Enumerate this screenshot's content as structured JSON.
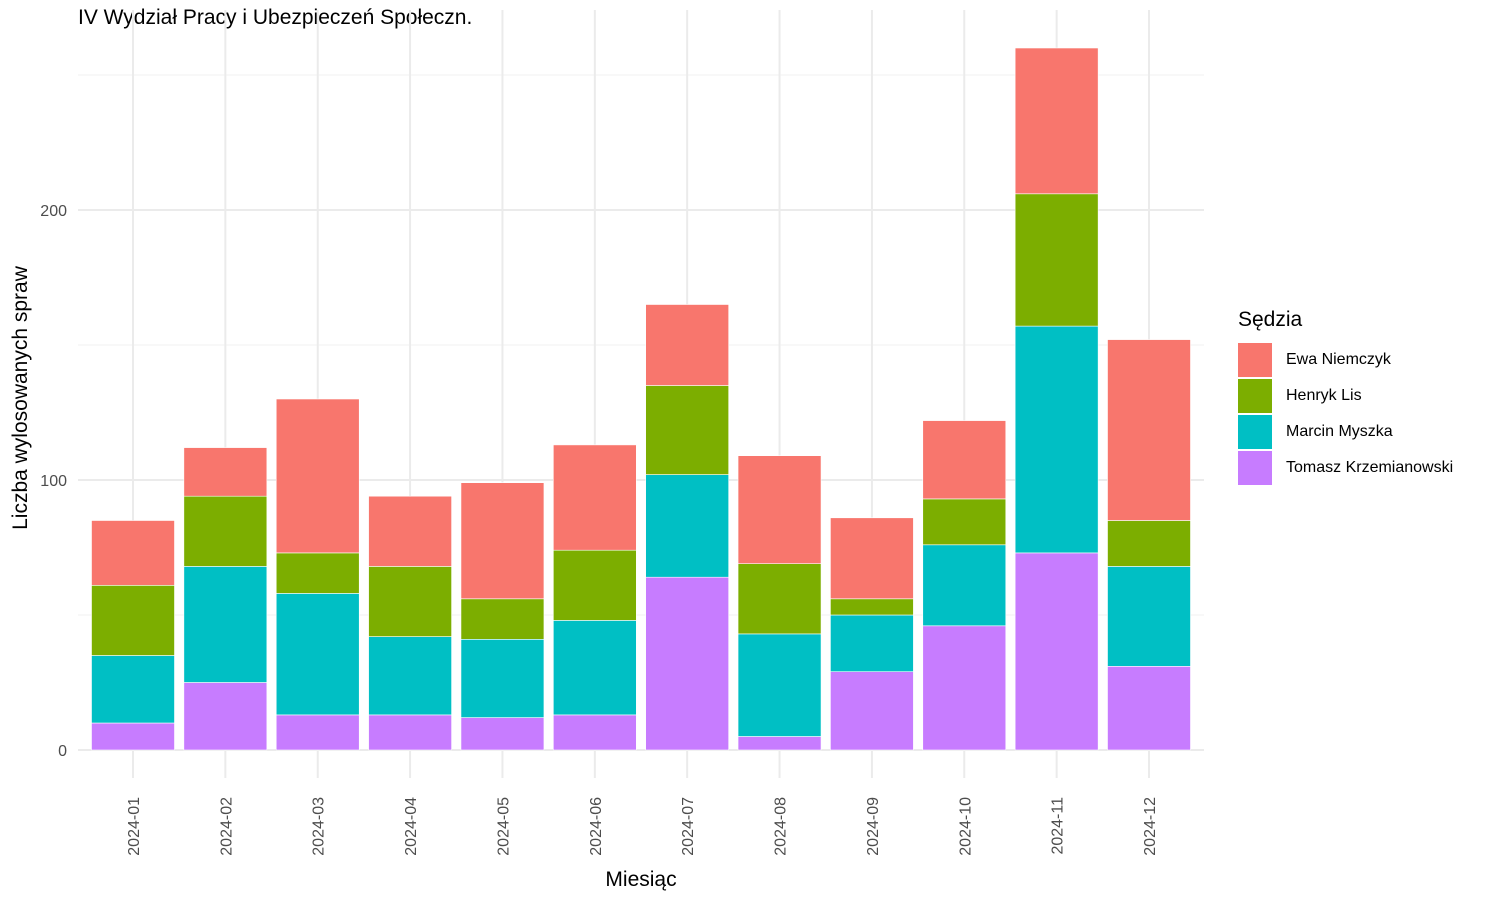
{
  "chart_data": {
    "type": "bar",
    "stacked": true,
    "title": "IV Wydział Pracy i Ubezpieczeń Społeczn.",
    "xlabel": "Miesiąc",
    "ylabel": "Liczba wylosowanych spraw",
    "ylim": [
      0,
      270
    ],
    "yticks": [
      0,
      100,
      200
    ],
    "grid": true,
    "legend_title": "Sędzia",
    "legend_position": "right",
    "categories": [
      "2024-01",
      "2024-02",
      "2024-03",
      "2024-04",
      "2024-05",
      "2024-06",
      "2024-07",
      "2024-08",
      "2024-09",
      "2024-10",
      "2024-11",
      "2024-12"
    ],
    "series": [
      {
        "name": "Tomasz Krzemianowski",
        "color": "#C77CFF",
        "values": [
          10,
          25,
          13,
          13,
          12,
          13,
          64,
          5,
          29,
          46,
          73,
          31
        ]
      },
      {
        "name": "Marcin Myszka",
        "color": "#00BFC4",
        "values": [
          25,
          43,
          45,
          29,
          29,
          35,
          38,
          38,
          21,
          30,
          84,
          37
        ]
      },
      {
        "name": "Henryk Lis",
        "color": "#7CAE00",
        "values": [
          26,
          26,
          15,
          26,
          15,
          26,
          33,
          26,
          6,
          17,
          49,
          17
        ]
      },
      {
        "name": "Ewa Niemczyk",
        "color": "#F8766D",
        "values": [
          24,
          18,
          57,
          26,
          43,
          39,
          30,
          40,
          30,
          29,
          54,
          67
        ]
      }
    ],
    "legend_order": [
      "Ewa Niemczyk",
      "Henryk Lis",
      "Marcin Myszka",
      "Tomasz Krzemianowski"
    ]
  }
}
